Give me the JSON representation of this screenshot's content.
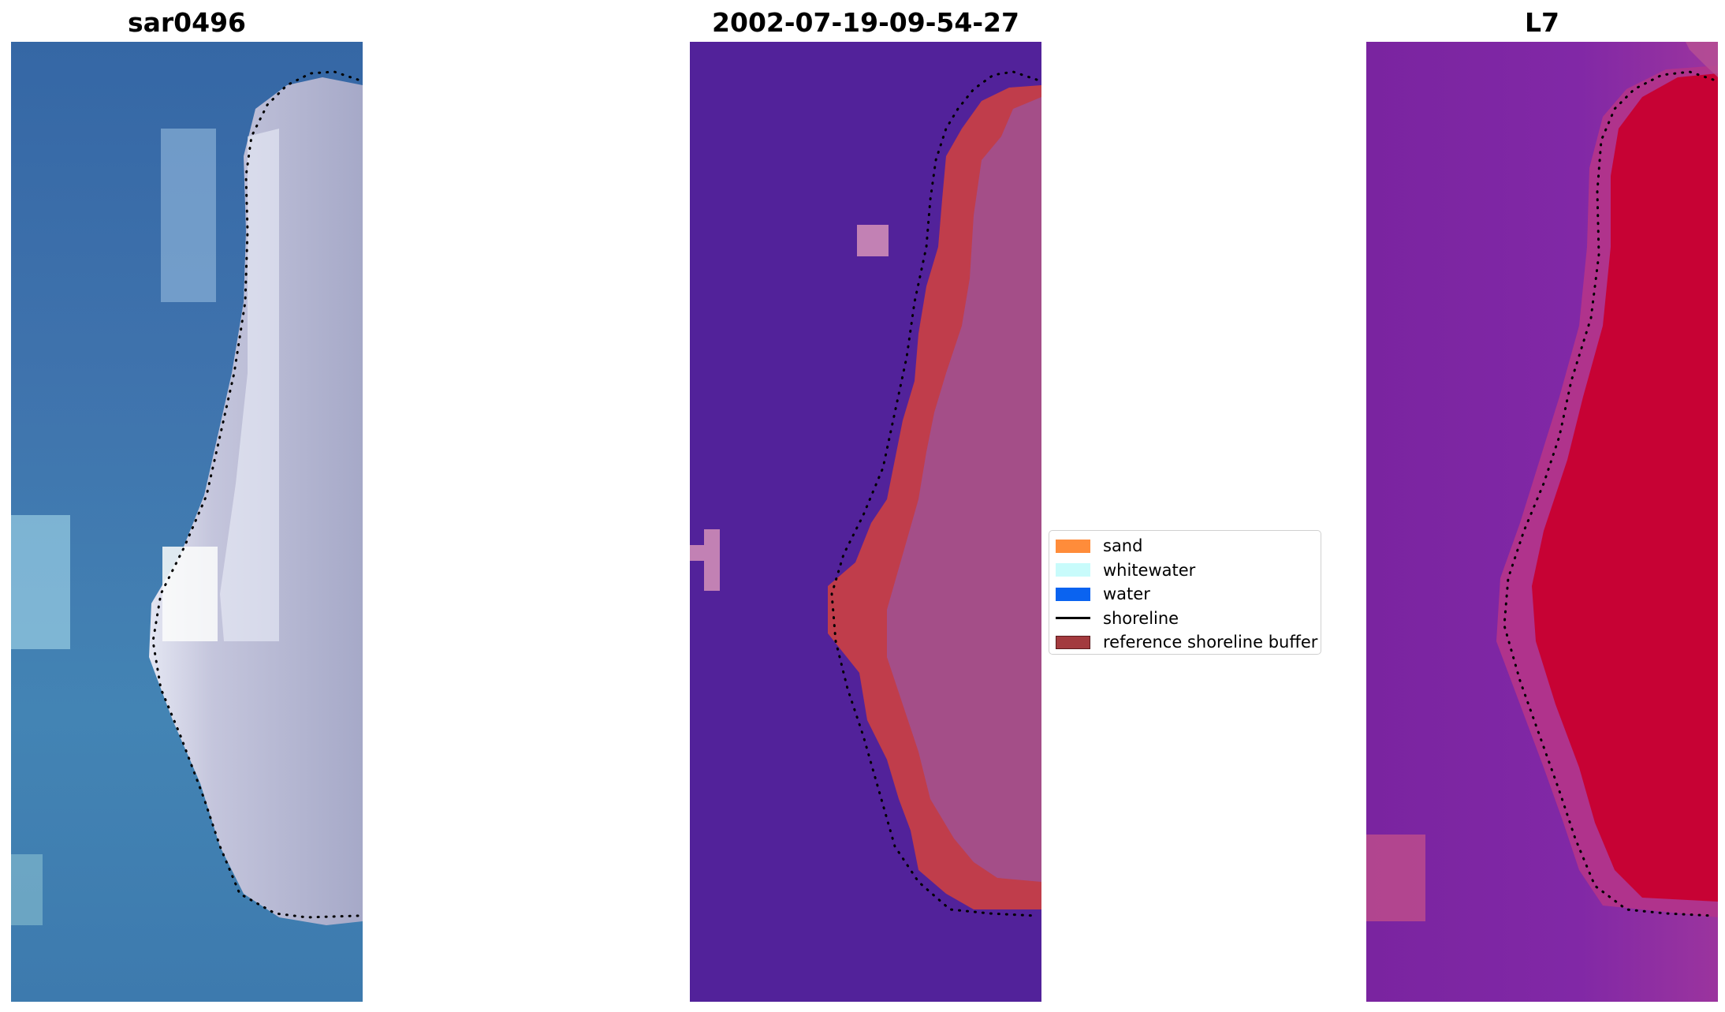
{
  "panels": [
    {
      "title": "sar0496"
    },
    {
      "title": "2002-07-19-09-54-27"
    },
    {
      "title": "L7"
    }
  ],
  "legend": {
    "items": [
      {
        "label": "sand",
        "color": "#ff8c3a",
        "kind": "patch"
      },
      {
        "label": "whitewater",
        "color": "#c8fbfb",
        "kind": "patch"
      },
      {
        "label": "water",
        "color": "#0a63f0",
        "kind": "patch"
      },
      {
        "label": "shoreline",
        "color": "#000000",
        "kind": "line"
      },
      {
        "label": "reference shoreline buffer",
        "color": "#a33a3e",
        "kind": "patch"
      }
    ]
  },
  "colors": {
    "ocean_rgb": "#3d78ad",
    "land_rgb": "#b9b8d2",
    "classified_background": "#52229a",
    "classified_buffer": "#c03d4b",
    "classified_land": "#a1508f",
    "ndwi_water": "#7a24a0",
    "ndwi_land": "#c8002f"
  }
}
